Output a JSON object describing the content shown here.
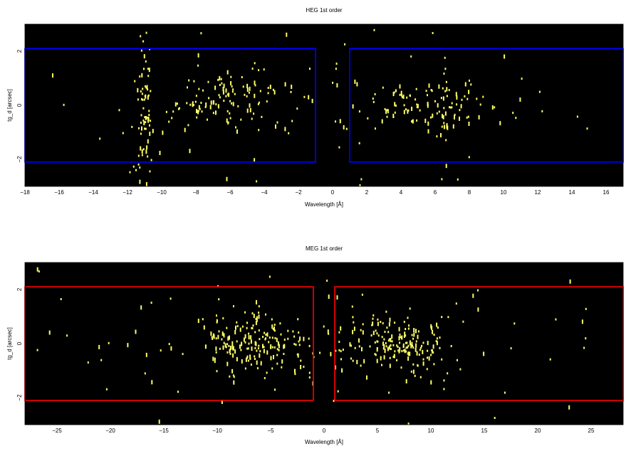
{
  "chart_data": [
    {
      "type": "heatmap",
      "title": "HEG 1st order",
      "xlabel": "Wavelength [Å]",
      "ylabel": "tg_d [arcsec]",
      "xlim": [
        -18,
        17
      ],
      "ylim": [
        -3,
        3
      ],
      "xticks": [
        "−18",
        "−16",
        "−14",
        "−12",
        "−10",
        "−8",
        "−6",
        "−4",
        "−2",
        "0",
        "2",
        "4",
        "6",
        "8",
        "10",
        "12",
        "14",
        "16"
      ],
      "xtick_values": [
        -18,
        -16,
        -14,
        -12,
        -10,
        -8,
        -6,
        -4,
        -2,
        0,
        2,
        4,
        6,
        8,
        10,
        12,
        14,
        16
      ],
      "yticks": [
        "−2",
        "0",
        "2"
      ],
      "ytick_values": [
        -2,
        0,
        2
      ],
      "background": "#000000",
      "event_color": "#ffff66",
      "region_color": "#0000ff",
      "regions": [
        {
          "x": [
            -18,
            -1
          ],
          "y": [
            -2.1,
            2.1
          ]
        },
        {
          "x": [
            1,
            17
          ],
          "y": [
            -2.1,
            2.1
          ]
        }
      ],
      "clusters": [
        {
          "xc": -6,
          "xs": 2.0,
          "yc": 0.3,
          "ys": 0.55,
          "n": 110
        },
        {
          "xc": -11,
          "xs": 0.25,
          "yc": 0,
          "ys": 1.3,
          "n": 70
        },
        {
          "xc": 5.5,
          "xs": 1.8,
          "yc": 0.1,
          "ys": 0.45,
          "n": 95
        },
        {
          "xc": 6.6,
          "xs": 0.15,
          "yc": 0,
          "ys": 1.3,
          "n": 18
        },
        {
          "xc": 0,
          "xs": 10,
          "yc": 0,
          "ys": 1.8,
          "n": 75
        }
      ],
      "seed": 11
    },
    {
      "type": "heatmap",
      "title": "MEG 1st order",
      "xlabel": "Wavelength [Å]",
      "ylabel": "tg_d [arcsec]",
      "xlim": [
        -28,
        28
      ],
      "ylim": [
        -3,
        3
      ],
      "xticks": [
        "−25",
        "−20",
        "−15",
        "−10",
        "−5",
        "0",
        "5",
        "10",
        "15",
        "20",
        "25"
      ],
      "xtick_values": [
        -25,
        -20,
        -15,
        -10,
        -5,
        0,
        5,
        10,
        15,
        20,
        25
      ],
      "yticks": [
        "−2",
        "0",
        "2"
      ],
      "ytick_values": [
        -2,
        0,
        2
      ],
      "background": "#000000",
      "event_color": "#ffff66",
      "region_color": "#ff0000",
      "regions": [
        {
          "x": [
            -28,
            -1
          ],
          "y": [
            -2.1,
            2.1
          ]
        },
        {
          "x": [
            1,
            28
          ],
          "y": [
            -2.1,
            2.1
          ]
        }
      ],
      "clusters": [
        {
          "xc": -6.5,
          "xs": 2.6,
          "yc": 0.05,
          "ys": 0.55,
          "n": 180
        },
        {
          "xc": 6.5,
          "xs": 2.6,
          "yc": 0.05,
          "ys": 0.55,
          "n": 180
        },
        {
          "xc": 0,
          "xs": 16,
          "yc": 0,
          "ys": 1.8,
          "n": 90
        }
      ],
      "seed": 29
    }
  ]
}
